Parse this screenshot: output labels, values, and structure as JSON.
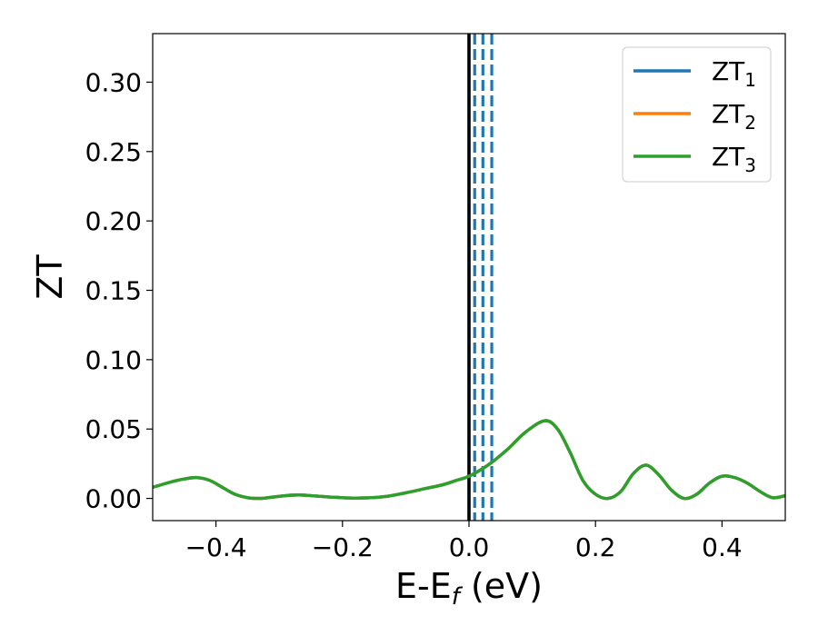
{
  "chart_data": {
    "type": "line",
    "xlabel": "E-E",
    "xlabel_sub": "f",
    "xlabel_unit": " (eV)",
    "ylabel": "ZT",
    "xlim": [
      -0.5,
      0.5
    ],
    "ylim": [
      -0.016,
      0.335
    ],
    "grid": false,
    "legend_placement": "top-right",
    "xticks": [
      -0.4,
      -0.2,
      0.0,
      0.2,
      0.4
    ],
    "xtick_labels": [
      "−0.4",
      "−0.2",
      "0.0",
      "0.2",
      "0.4"
    ],
    "yticks": [
      0.0,
      0.05,
      0.1,
      0.15,
      0.2,
      0.25,
      0.3
    ],
    "ytick_labels": [
      "0.00",
      "0.05",
      "0.10",
      "0.15",
      "0.20",
      "0.25",
      "0.30"
    ],
    "vertical_lines": [
      {
        "x": 0.0,
        "style": "solid",
        "color": "#000000"
      },
      {
        "x": 0.009,
        "style": "dashed",
        "color": "#1f77b4"
      },
      {
        "x": 0.022,
        "style": "dashed",
        "color": "#1f77b4"
      },
      {
        "x": 0.036,
        "style": "dashed",
        "color": "#1f77b4"
      }
    ],
    "x": [
      -0.5,
      -0.47,
      -0.45,
      -0.43,
      -0.41,
      -0.39,
      -0.37,
      -0.35,
      -0.33,
      -0.31,
      -0.29,
      -0.27,
      -0.25,
      -0.22,
      -0.19,
      -0.16,
      -0.13,
      -0.1,
      -0.07,
      -0.04,
      -0.02,
      0.0,
      0.03,
      0.06,
      0.09,
      0.12,
      0.14,
      0.16,
      0.18,
      0.2,
      0.22,
      0.24,
      0.26,
      0.28,
      0.3,
      0.32,
      0.34,
      0.36,
      0.38,
      0.4,
      0.42,
      0.44,
      0.46,
      0.48,
      0.5
    ],
    "series": [
      {
        "name": "ZT",
        "sub": "1",
        "color": "#1f77b4",
        "values": [
          0.008,
          0.012,
          0.014,
          0.015,
          0.013,
          0.008,
          0.003,
          0.0005,
          0.0,
          0.001,
          0.002,
          0.0025,
          0.002,
          0.001,
          0.0003,
          0.0004,
          0.0015,
          0.004,
          0.007,
          0.01,
          0.013,
          0.016,
          0.024,
          0.035,
          0.048,
          0.056,
          0.05,
          0.033,
          0.013,
          0.003,
          0.0,
          0.005,
          0.018,
          0.024,
          0.017,
          0.006,
          0.0,
          0.003,
          0.011,
          0.016,
          0.015,
          0.011,
          0.005,
          0.0005,
          0.002
        ]
      },
      {
        "name": "ZT",
        "sub": "2",
        "color": "#ff7f0e",
        "values": [
          0.008,
          0.012,
          0.014,
          0.015,
          0.013,
          0.008,
          0.003,
          0.0005,
          0.0,
          0.001,
          0.002,
          0.0025,
          0.002,
          0.001,
          0.0003,
          0.0004,
          0.0015,
          0.004,
          0.007,
          0.01,
          0.013,
          0.016,
          0.024,
          0.035,
          0.048,
          0.056,
          0.05,
          0.033,
          0.013,
          0.003,
          0.0,
          0.005,
          0.018,
          0.024,
          0.017,
          0.006,
          0.0,
          0.003,
          0.011,
          0.016,
          0.015,
          0.011,
          0.005,
          0.0005,
          0.002
        ]
      },
      {
        "name": "ZT",
        "sub": "3",
        "color": "#2ca02c",
        "values": [
          0.008,
          0.012,
          0.014,
          0.015,
          0.013,
          0.008,
          0.003,
          0.0005,
          0.0,
          0.001,
          0.002,
          0.0025,
          0.002,
          0.001,
          0.0003,
          0.0004,
          0.0015,
          0.004,
          0.007,
          0.01,
          0.013,
          0.016,
          0.024,
          0.035,
          0.048,
          0.056,
          0.05,
          0.033,
          0.013,
          0.003,
          0.0,
          0.005,
          0.018,
          0.024,
          0.017,
          0.006,
          0.0,
          0.003,
          0.011,
          0.016,
          0.015,
          0.011,
          0.005,
          0.0005,
          0.002
        ]
      }
    ]
  }
}
